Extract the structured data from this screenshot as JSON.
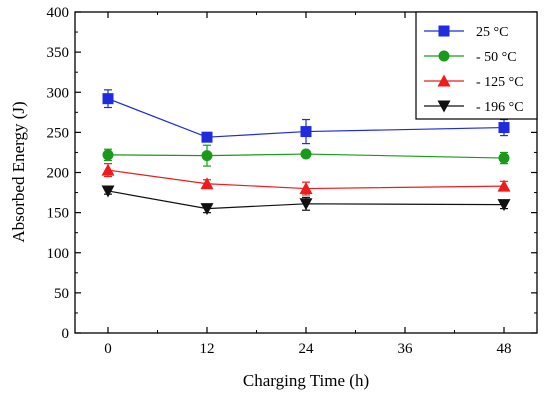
{
  "chart_data": {
    "type": "line",
    "xlabel": "Charging Time (h)",
    "ylabel": "Absorbed Energy (J)",
    "xlim": [
      -4,
      52
    ],
    "ylim": [
      0,
      400
    ],
    "xticks": [
      0,
      12,
      24,
      36,
      48
    ],
    "yticks": [
      0,
      50,
      100,
      150,
      200,
      250,
      300,
      350,
      400
    ],
    "xtick_labels": [
      "0",
      "12",
      "24",
      "36",
      "48"
    ],
    "ytick_labels": [
      "0",
      "50",
      "100",
      "150",
      "200",
      "250",
      "300",
      "350",
      "400"
    ],
    "grid": false,
    "legend_position": "top-right",
    "x": [
      0,
      12,
      24,
      48
    ],
    "series": [
      {
        "name": "25 °C",
        "color": "#1f2bdc",
        "marker": "square",
        "values": [
          292,
          244,
          251,
          256
        ],
        "errors": [
          11,
          5,
          15,
          10
        ]
      },
      {
        "name": "- 50 °C",
        "color": "#1a9a1a",
        "marker": "circle",
        "values": [
          222,
          221,
          223,
          218
        ],
        "errors": [
          7,
          13,
          3,
          7
        ]
      },
      {
        "name": "- 125 °C",
        "color": "#ee1c1c",
        "marker": "triangle-up",
        "values": [
          203,
          186,
          180,
          183
        ],
        "errors": [
          8,
          5,
          8,
          6
        ]
      },
      {
        "name": "- 196 °C",
        "color": "#111111",
        "marker": "triangle-down",
        "values": [
          177,
          155,
          161,
          160
        ],
        "errors": [
          4,
          5,
          8,
          5
        ]
      }
    ]
  }
}
